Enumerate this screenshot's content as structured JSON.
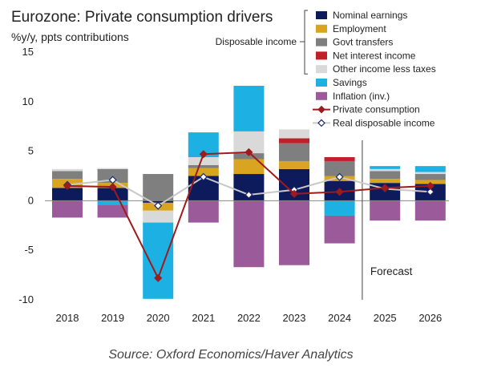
{
  "chart_data": {
    "type": "bar",
    "title": "Eurozone: Private consumption drivers",
    "subtitle": "%y/y, ppts contributions",
    "categories": [
      "2018",
      "2019",
      "2020",
      "2021",
      "2022",
      "2023",
      "2024",
      "2025",
      "2026"
    ],
    "ylim": [
      -10,
      15
    ],
    "yticks": [
      15,
      10,
      5,
      0,
      -5,
      -10
    ],
    "forecast_label": "Forecast",
    "forecast_from": "2025",
    "legend_group_label": "Disposable income",
    "legend_placement": "top-right",
    "grid": false,
    "stacked_series": [
      {
        "name": "Nominal earnings",
        "color": "#0d1a5c",
        "values": [
          1.3,
          1.3,
          -0.2,
          2.5,
          2.7,
          3.2,
          2.0,
          1.8,
          1.7
        ]
      },
      {
        "name": "Employment",
        "color": "#d9a520",
        "values": [
          0.9,
          0.5,
          -0.8,
          0.8,
          1.5,
          0.8,
          0.5,
          0.4,
          0.4
        ]
      },
      {
        "name": "Govt transfers",
        "color": "#7f7f7f",
        "values": [
          0.8,
          1.4,
          2.7,
          0.3,
          0.6,
          1.8,
          1.5,
          0.8,
          0.6
        ]
      },
      {
        "name": "Net interest income",
        "color": "#c0202a",
        "values": [
          0.0,
          0.0,
          0.0,
          0.0,
          0.0,
          0.5,
          0.4,
          0.0,
          0.0
        ]
      },
      {
        "name": "Other income less taxes",
        "color": "#d9d9d9",
        "values": [
          0.2,
          0.1,
          -1.2,
          0.8,
          2.2,
          0.9,
          0.0,
          0.2,
          0.2
        ]
      },
      {
        "name": "Savings",
        "color": "#1db1e3",
        "values": [
          0.0,
          -0.4,
          -7.7,
          2.5,
          4.6,
          0.0,
          -1.5,
          0.3,
          0.6
        ]
      },
      {
        "name": "Inflation (inv.)",
        "color": "#9b5b9b",
        "values": [
          -1.7,
          -1.3,
          0.0,
          -2.2,
          -6.7,
          -6.5,
          -2.8,
          -2.0,
          -2.0
        ]
      }
    ],
    "line_series": [
      {
        "name": "Private consumption",
        "color": "#9e1b1b",
        "marker": "diamond-filled",
        "values": [
          1.5,
          1.4,
          -7.8,
          4.7,
          4.9,
          0.7,
          0.9,
          1.3,
          1.5
        ]
      },
      {
        "name": "Real disposable income",
        "color": "#c8c8c8",
        "marker": "diamond-open",
        "values": [
          1.6,
          2.1,
          -0.5,
          2.4,
          0.6,
          1.1,
          2.4,
          1.2,
          0.9
        ]
      }
    ]
  },
  "source": "Source: Oxford Economics/Haver Analytics"
}
